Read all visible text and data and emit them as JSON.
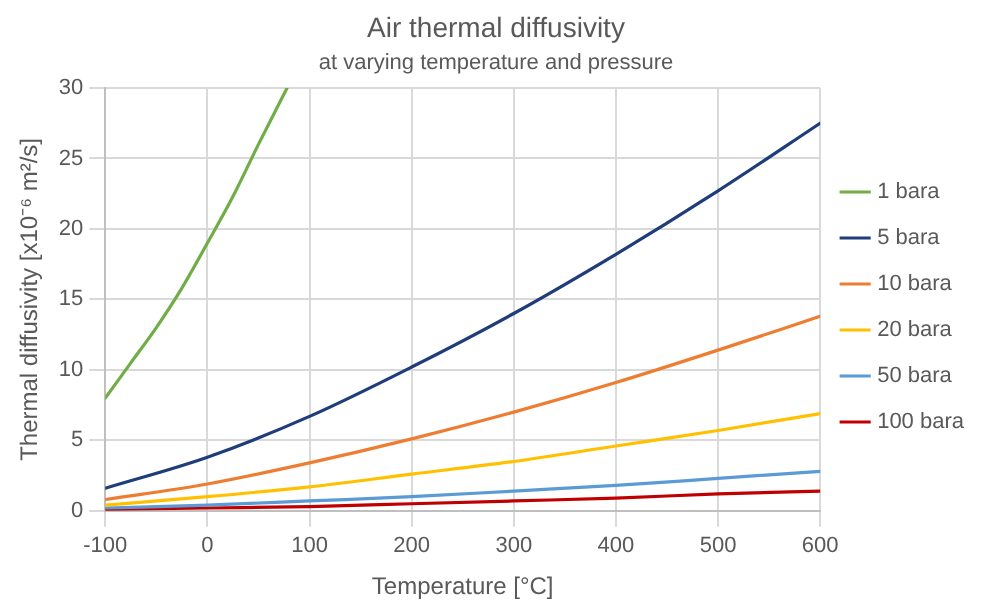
{
  "chart_data": {
    "type": "line",
    "title": "Air thermal diffusivity",
    "subtitle": "at varying temperature and pressure",
    "xlabel": "Temperature [°C]",
    "ylabel": "Thermal diffusivity [x10⁻⁶ m²/s]",
    "x": [
      -100,
      0,
      100,
      200,
      300,
      400,
      500,
      600
    ],
    "series": [
      {
        "name": "1 bara",
        "color": "#70ad47",
        "x": [
          -100,
          -75,
          -50,
          -25,
          0,
          25,
          50,
          78
        ],
        "values": [
          8,
          10.5,
          13,
          15.8,
          19,
          22.3,
          26,
          30
        ]
      },
      {
        "name": "5 bara",
        "color": "#1f3d7a",
        "values": [
          1.6,
          3.8,
          6.7,
          10.2,
          14.0,
          18.2,
          22.7,
          27.5
        ]
      },
      {
        "name": "10 bara",
        "color": "#ed7d31",
        "values": [
          0.8,
          1.9,
          3.4,
          5.1,
          7.0,
          9.1,
          11.4,
          13.8
        ]
      },
      {
        "name": "20 bara",
        "color": "#ffc000",
        "values": [
          0.4,
          1.0,
          1.7,
          2.6,
          3.5,
          4.6,
          5.7,
          6.9
        ]
      },
      {
        "name": "50 bara",
        "color": "#5b9bd5",
        "values": [
          0.2,
          0.4,
          0.7,
          1.0,
          1.4,
          1.8,
          2.3,
          2.8
        ]
      },
      {
        "name": "100 bara",
        "color": "#c00000",
        "values": [
          0.1,
          0.2,
          0.3,
          0.5,
          0.7,
          0.9,
          1.2,
          1.4
        ]
      }
    ],
    "xlim": [
      -100,
      600
    ],
    "xticks": [
      -100,
      0,
      100,
      200,
      300,
      400,
      500,
      600
    ],
    "ylim": [
      0,
      30
    ],
    "yticks": [
      0,
      5,
      10,
      15,
      20,
      25,
      30
    ],
    "grid": true,
    "legend": "right",
    "marker": "none",
    "line_style": "solid"
  }
}
